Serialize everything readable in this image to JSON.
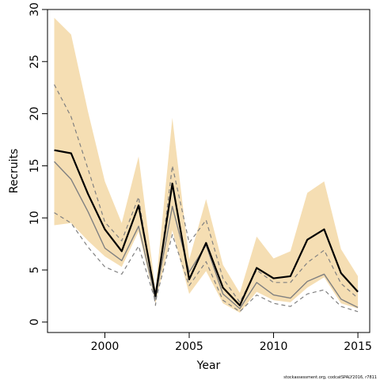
{
  "chart_data": {
    "type": "line",
    "title": "",
    "xlabel": "Year",
    "ylabel": "Recruits",
    "xlim": [
      1996.6,
      2015.7
    ],
    "ylim": [
      -1.0,
      30.0
    ],
    "x_ticks": [
      2000,
      2005,
      2010,
      2015
    ],
    "y_ticks": [
      0,
      5,
      10,
      15,
      20,
      25,
      30
    ],
    "grid": false,
    "legend": "none",
    "x": [
      1997,
      1998,
      1999,
      2000,
      2001,
      2002,
      2003,
      2004,
      2005,
      2006,
      2007,
      2008,
      2009,
      2010,
      2011,
      2012,
      2013,
      2014,
      2015
    ],
    "band": {
      "color": "#f5deb3",
      "lower": [
        9.3,
        9.5,
        7.8,
        6.3,
        5.3,
        8.7,
        1.8,
        8.8,
        2.7,
        4.9,
        1.8,
        0.9,
        2.9,
        2.1,
        1.9,
        3.3,
        4.3,
        1.8,
        1.3
      ],
      "upper": [
        29.2,
        27.6,
        20.2,
        13.5,
        9.5,
        15.9,
        3.1,
        19.6,
        6.0,
        11.8,
        5.5,
        2.8,
        8.2,
        6.1,
        6.8,
        12.4,
        13.5,
        7.0,
        4.4
      ]
    },
    "series": [
      {
        "color": "#000000",
        "style": "solid",
        "width": 2.2,
        "values": [
          16.5,
          16.2,
          12.3,
          8.9,
          6.8,
          11.2,
          2.5,
          13.3,
          4.1,
          7.6,
          3.3,
          1.6,
          5.2,
          4.2,
          4.4,
          7.9,
          8.9,
          4.7,
          2.9
        ]
      },
      {
        "color": "#808080",
        "style": "solid",
        "width": 1.4,
        "values": [
          15.4,
          13.7,
          10.6,
          7.1,
          5.9,
          9.2,
          2.3,
          11.1,
          4.8,
          7.4,
          2.7,
          1.3,
          3.8,
          2.6,
          2.3,
          3.9,
          4.6,
          2.2,
          1.4
        ]
      },
      {
        "color": "#808080",
        "style": "dashed",
        "width": 1.2,
        "values": [
          22.8,
          19.7,
          14.7,
          9.6,
          7.8,
          12.0,
          1.6,
          15.0,
          7.6,
          9.8,
          4.2,
          1.9,
          5.0,
          3.8,
          3.8,
          5.7,
          6.9,
          3.7,
          2.3
        ]
      },
      {
        "color": "#808080",
        "style": "dashed",
        "width": 1.2,
        "values": [
          10.5,
          9.5,
          7.2,
          5.3,
          4.6,
          7.3,
          2.0,
          8.4,
          3.5,
          5.8,
          2.1,
          1.0,
          2.6,
          1.8,
          1.5,
          2.7,
          3.1,
          1.5,
          1.0
        ]
      }
    ],
    "footnote": "stockassessment.org, codcatSPALY2016, r7811"
  }
}
